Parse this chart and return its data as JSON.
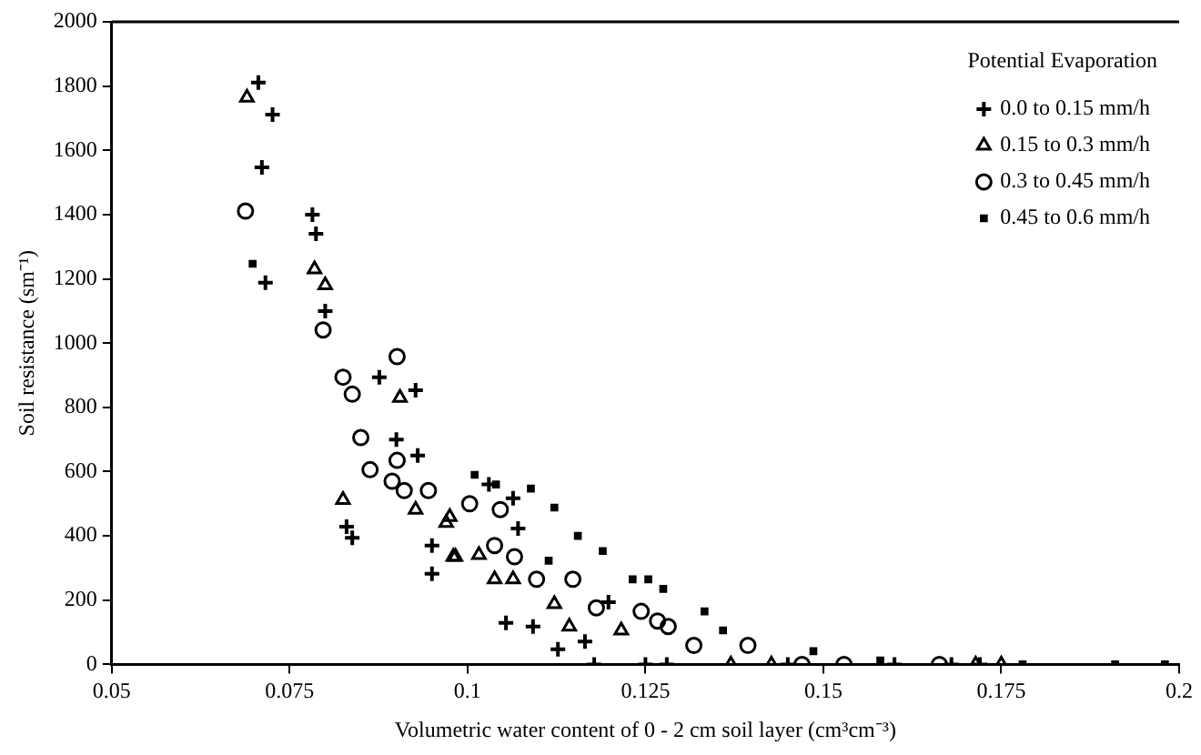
{
  "chart_data": {
    "type": "scatter",
    "xlabel": "Volumetric water content of 0 - 2 cm soil layer (cm³cm⁻³)",
    "ylabel": "Soil resistance (sm⁻¹)",
    "legend_title": "Potential Evaporation",
    "legend": "top right",
    "grid": false,
    "xlim": [
      0.05,
      0.2
    ],
    "xticks": [
      0.05,
      0.075,
      0.1,
      0.125,
      0.15,
      0.175,
      0.2
    ],
    "ylim": [
      0,
      2000
    ],
    "yticks": [
      0,
      200,
      400,
      600,
      800,
      1000,
      1200,
      1400,
      1600,
      1800,
      2000
    ],
    "series": [
      {
        "name": "0.0 to 0.15 mm/h",
        "color": "#000000",
        "marker": "cross",
        "x": [
          0.0706,
          0.0726,
          0.0711,
          0.0782,
          0.0787,
          0.0716,
          0.08,
          0.0876,
          0.0927,
          0.09,
          0.093,
          0.083,
          0.0838,
          0.095,
          0.095,
          0.1071,
          0.1054,
          0.1092,
          0.1127,
          0.1165,
          0.1198,
          0.1064,
          0.103,
          0.1178,
          0.125,
          0.128,
          0.145,
          0.16,
          0.168,
          0.172
        ],
        "values": [
          1811,
          1711,
          1547,
          1400,
          1340,
          1188,
          1100,
          894,
          853,
          700,
          650,
          429,
          394,
          370,
          282,
          423,
          129,
          118,
          47,
          71,
          194,
          517,
          560,
          0,
          0,
          0,
          0,
          0,
          0,
          0
        ]
      },
      {
        "name": "0.15 to 0.3 mm/h",
        "color": "#000000",
        "marker": "triangle",
        "x": [
          0.069,
          0.0785,
          0.08,
          0.0905,
          0.0825,
          0.0927,
          0.0975,
          0.098,
          0.097,
          0.0983,
          0.1016,
          0.1038,
          0.1064,
          0.1122,
          0.1143,
          0.1216,
          0.137,
          0.1427,
          0.1714,
          0.175
        ],
        "values": [
          1764,
          1230,
          1180,
          830,
          512,
          482,
          459,
          335,
          441,
          335,
          341,
          265,
          265,
          188,
          118,
          106,
          0,
          0,
          0,
          0
        ]
      },
      {
        "name": "0.3 to 0.45 mm/h",
        "color": "#000000",
        "marker": "circle",
        "x": [
          0.0688,
          0.0797,
          0.0825,
          0.0838,
          0.0901,
          0.085,
          0.0863,
          0.0901,
          0.0894,
          0.0911,
          0.0945,
          0.1003,
          0.1046,
          0.1066,
          0.1038,
          0.1097,
          0.1148,
          0.1181,
          0.1244,
          0.1267,
          0.1282,
          0.1318,
          0.1394,
          0.147,
          0.1529,
          0.1663
        ],
        "values": [
          1411,
          1041,
          894,
          841,
          958,
          706,
          606,
          635,
          570,
          541,
          541,
          500,
          482,
          335,
          370,
          265,
          265,
          176,
          165,
          135,
          118,
          59,
          59,
          0,
          0,
          0
        ]
      },
      {
        "name": "0.45 to 0.6 mm/h",
        "color": "#000000",
        "marker": "square",
        "x": [
          0.0698,
          0.101,
          0.104,
          0.1089,
          0.1122,
          0.1114,
          0.1155,
          0.119,
          0.1232,
          0.1254,
          0.1275,
          0.1333,
          0.1359,
          0.1486,
          0.158,
          0.178,
          0.191,
          0.198
        ],
        "values": [
          1247,
          590,
          560,
          547,
          488,
          323,
          400,
          353,
          265,
          265,
          235,
          165,
          106,
          41,
          12,
          0,
          0,
          0
        ]
      }
    ]
  }
}
